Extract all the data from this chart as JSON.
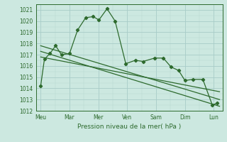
{
  "background_color": "#cce8e0",
  "grid_color_major": "#a8ccc8",
  "grid_color_minor": "#b8d8d0",
  "line_color": "#2d6a2d",
  "ylabel_text": "Pression niveau de la mer( hPa )",
  "ylim": [
    1012,
    1021.5
  ],
  "yticks": [
    1012,
    1013,
    1014,
    1015,
    1016,
    1017,
    1018,
    1019,
    1020,
    1021
  ],
  "x_labels": [
    "Meu",
    "Mar",
    "Mer",
    "Ven",
    "Sam",
    "Dim",
    "Lun"
  ],
  "x_positions": [
    0,
    1,
    2,
    3,
    4,
    5,
    6
  ],
  "xlim": [
    -0.15,
    6.3
  ],
  "main_line_x": [
    0.0,
    0.13,
    0.32,
    0.52,
    0.72,
    1.0,
    1.28,
    1.56,
    1.82,
    2.02,
    2.3,
    2.58,
    2.95,
    3.28,
    3.55,
    3.95,
    4.25,
    4.52,
    4.78,
    5.0,
    5.28,
    5.62,
    5.95,
    6.12
  ],
  "main_line_y": [
    1014.2,
    1016.6,
    1017.1,
    1017.8,
    1017.0,
    1017.1,
    1019.2,
    1020.3,
    1020.4,
    1020.1,
    1021.1,
    1020.0,
    1016.2,
    1016.5,
    1016.4,
    1016.7,
    1016.7,
    1015.9,
    1015.6,
    1014.7,
    1014.8,
    1014.8,
    1012.5,
    1012.7
  ],
  "trend1_x": [
    0.0,
    6.2
  ],
  "trend1_y": [
    1017.8,
    1013.0
  ],
  "trend2_x": [
    0.0,
    6.2
  ],
  "trend2_y": [
    1017.3,
    1012.4
  ],
  "trend3_x": [
    0.0,
    6.2
  ],
  "trend3_y": [
    1016.8,
    1013.7
  ],
  "tick_fontsize": 5.5,
  "xlabel_fontsize": 6.5
}
